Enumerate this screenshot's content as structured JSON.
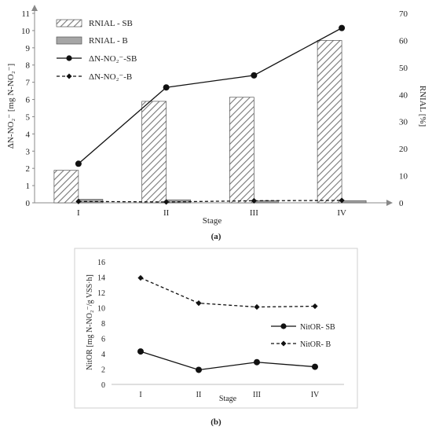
{
  "panel_a_label": "(a)",
  "panel_b_label": "(b)",
  "chart_data": [
    {
      "type": "bar",
      "panel": "a",
      "categories": [
        "I",
        "II",
        "III",
        "IV"
      ],
      "xlabel": "Stage",
      "ylabel": "ΔN-NO₂⁻ [mg N-NO₂⁻]",
      "y2label": "RNIAL [%]",
      "ylim": [
        0,
        11
      ],
      "y2lim": [
        0,
        70
      ],
      "yticks": [
        "0",
        "1",
        "2",
        "3",
        "4",
        "5",
        "6",
        "7",
        "8",
        "9",
        "10",
        "11"
      ],
      "y2ticks": [
        "0",
        "10",
        "20",
        "30",
        "40",
        "50",
        "60",
        "70"
      ],
      "legend_position": "top-left",
      "grid": false,
      "series": [
        {
          "name": "RNIAL - SB",
          "kind": "bar",
          "axis": "right",
          "hatch": "diagonal",
          "values": [
            12,
            37.5,
            39,
            60
          ]
        },
        {
          "name": "RNIAL - B",
          "kind": "bar",
          "axis": "right",
          "color": "#a6a6a6",
          "values": [
            1.3,
            1.1,
            0.8,
            0.8
          ]
        },
        {
          "name": "ΔN-NO₂⁻-SB",
          "kind": "line",
          "axis": "left",
          "style": "solid",
          "marker": "circle",
          "values": [
            2.27,
            6.7,
            7.4,
            10.15
          ]
        },
        {
          "name": "ΔN-NO₂⁻-B",
          "kind": "line",
          "axis": "left",
          "style": "dashed",
          "marker": "diamond",
          "values": [
            0.08,
            0.05,
            0.12,
            0.14
          ]
        }
      ]
    },
    {
      "type": "line",
      "panel": "b",
      "categories": [
        "I",
        "II",
        "III",
        "IV"
      ],
      "xlabel": "Stage",
      "ylabel": "NitOR [mg N-NO₂⁻/g VSS·h]",
      "ylim": [
        0,
        16
      ],
      "yticks": [
        "0",
        "2",
        "4",
        "6",
        "8",
        "10",
        "12",
        "14",
        "16"
      ],
      "legend_position": "right",
      "grid": false,
      "series": [
        {
          "name": "NitOR- SB",
          "style": "solid",
          "marker": "circle",
          "values": [
            4.3,
            1.9,
            2.9,
            2.3
          ]
        },
        {
          "name": "NitOR- B",
          "style": "dashed",
          "marker": "diamond",
          "values": [
            13.9,
            10.6,
            10.1,
            10.2
          ]
        }
      ]
    }
  ]
}
